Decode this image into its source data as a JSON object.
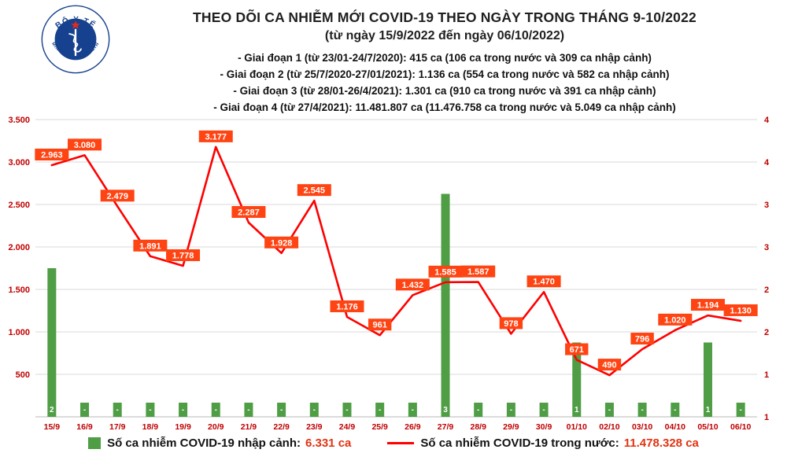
{
  "logo": {
    "top_text": "BỘ Y TẾ",
    "bottom_text": "MINISTRY OF HEALTH"
  },
  "header": {
    "title": "THEO DÕI CA NHIỄM MỚI COVID-19 THEO NGÀY TRONG THÁNG 9-10/2022",
    "subtitle": "(từ ngày 15/9/2022 đến ngày 06/10/2022)",
    "info_lines": [
      "- Giai đoạn 1 (từ 23/01-24/7/2020): 415 ca (106 ca trong nước và 309 ca nhập cảnh)",
      "- Giai đoạn 2 (từ 25/7/2020-27/01/2021): 1.136 ca (554 ca trong nước và 582 ca nhập cảnh)",
      "- Giai đoạn 3 (từ 28/01-26/4/2021): 1.301 ca (910 ca trong nước và 391 ca nhập cảnh)",
      "- Giai đoạn 4 (từ 27/4/2021): 11.481.807 ca (11.476.758 ca trong nước và 5.049 ca nhập cảnh)"
    ]
  },
  "chart_data": {
    "type": "combo",
    "title": "THEO DÕI CA NHIỄM MỚI COVID-19 THEO NGÀY TRONG THÁNG 9-10/2022",
    "categories": [
      "15/9",
      "16/9",
      "17/9",
      "18/9",
      "19/9",
      "20/9",
      "21/9",
      "22/9",
      "23/9",
      "24/9",
      "25/9",
      "26/9",
      "27/9",
      "28/9",
      "29/9",
      "30/9",
      "01/10",
      "02/10",
      "03/10",
      "04/10",
      "05/10",
      "06/10"
    ],
    "series": [
      {
        "name": "Số ca nhiễm COVID-19 nhập cảnh",
        "type": "bar",
        "axis": "right",
        "values": [
          2,
          0,
          0,
          0,
          0,
          0,
          0,
          0,
          0,
          0,
          0,
          0,
          3,
          0,
          0,
          0,
          1,
          0,
          0,
          0,
          1,
          0
        ],
        "labels": [
          "2",
          "-",
          "-",
          "-",
          "-",
          "-",
          "-",
          "-",
          "-",
          "-",
          "-",
          "-",
          "3",
          "-",
          "-",
          "-",
          "1",
          "-",
          "-",
          "-",
          "1",
          "-"
        ]
      },
      {
        "name": "Số ca nhiễm COVID-19 trong nước",
        "type": "line",
        "axis": "left",
        "values": [
          2963,
          3080,
          2479,
          1891,
          1778,
          3177,
          2287,
          1928,
          2545,
          1176,
          961,
          1432,
          1585,
          1587,
          978,
          1470,
          671,
          490,
          796,
          1020,
          1194,
          1130
        ],
        "labels": [
          "2.963",
          "3.080",
          "2.479",
          "1.891",
          "1.778",
          "3.177",
          "2.287",
          "1.928",
          "2.545",
          "1.176",
          "961",
          "1.432",
          "1.585",
          "1.587",
          "978",
          "1.470",
          "671",
          "490",
          "796",
          "1.020",
          "1.194",
          "1.130"
        ]
      }
    ],
    "left_axis": {
      "max": 3500,
      "tick_values": [
        3500,
        3000,
        2500,
        2000,
        1500,
        1000,
        500
      ],
      "tick_labels": [
        "3.500",
        "3.000",
        "2.500",
        "2.000",
        "1.500",
        "1.000",
        "500"
      ]
    },
    "right_axis": {
      "max": 4,
      "tick_labels": [
        "4",
        "4",
        "3",
        "3",
        "2",
        "2",
        "1",
        "1"
      ]
    },
    "grid": true,
    "legend_position": "bottom",
    "colors": {
      "bar": "#4f9d45",
      "line": "#fe0000",
      "label_bg": "#ff4413",
      "tick": "#c00000",
      "grid": "#d9d9d9"
    }
  },
  "legend": {
    "bar_label": "Số ca nhiễm COVID-19 nhập cảnh:",
    "bar_value": "6.331 ca",
    "line_label": "Số ca nhiễm COVID-19 trong nước:",
    "line_value": "11.478.328 ca"
  }
}
